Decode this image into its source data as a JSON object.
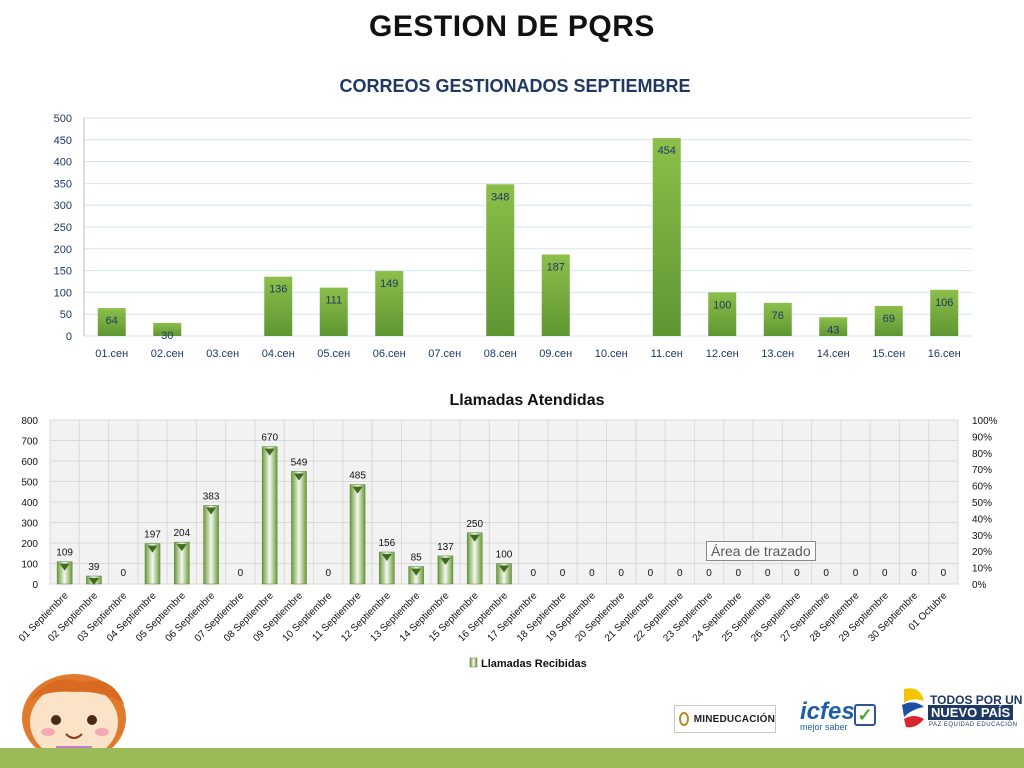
{
  "page": {
    "title": "GESTION DE PQRS"
  },
  "chart_data": [
    {
      "type": "bar",
      "title": "CORREOS GESTIONADOS SEPTIEMBRE",
      "categories": [
        "01.сен",
        "02.сен",
        "03.сен",
        "04.сен",
        "05.сен",
        "06.сен",
        "07.сен",
        "08.сен",
        "09.сен",
        "10.сен",
        "11.сен",
        "12.сен",
        "13.сен",
        "14.сен",
        "15.сен",
        "16.сен"
      ],
      "values": [
        64,
        30,
        null,
        136,
        111,
        149,
        null,
        348,
        187,
        null,
        454,
        100,
        76,
        43,
        69,
        106
      ],
      "ylim": [
        0,
        500
      ],
      "yticks": [
        0,
        50,
        100,
        150,
        200,
        250,
        300,
        350,
        400,
        450,
        500
      ],
      "grid": true,
      "colors": {
        "bar": "#8cbf4a",
        "bar_dark": "#5e9632",
        "label": "#1f3864",
        "grid": "#d6e3f0",
        "axis_text": "#1f3864"
      }
    },
    {
      "type": "bar",
      "title": "Llamadas Atendidas",
      "categories": [
        "01 Septiembre",
        "02 Septiembre",
        "03 Septiembre",
        "04 Septiembre",
        "05 Septiembre",
        "06 Septiembre",
        "07 Septiembre",
        "08 Septiembre",
        "09 Septiembre",
        "10 Septiembre",
        "11 Septiembre",
        "12 Septiembre",
        "13 Septiembre",
        "14 Septiembre",
        "15 Septiembre",
        "16 Septiembre",
        "17 Septiembre",
        "18 Septiembre",
        "19 Septiembre",
        "20 Septiembre",
        "21 Septiembre",
        "22 Septiembre",
        "23 Septiembre",
        "24 Septiembre",
        "25 Septiembre",
        "26 Septiembre",
        "27 Septiembre",
        "28 Septiembre",
        "29 Septiembre",
        "30 Septiembre",
        "01 Octubre"
      ],
      "series": [
        {
          "name": "Llamadas Recibidas",
          "values": [
            109,
            39,
            0,
            197,
            204,
            383,
            0,
            670,
            549,
            0,
            485,
            156,
            85,
            137,
            250,
            100,
            0,
            0,
            0,
            0,
            0,
            0,
            0,
            0,
            0,
            0,
            0,
            0,
            0,
            0,
            0
          ]
        }
      ],
      "ylim": [
        0,
        800
      ],
      "yticks": [
        0,
        100,
        200,
        300,
        400,
        500,
        600,
        700,
        800
      ],
      "y2lim": [
        0,
        100
      ],
      "y2ticks": [
        "0%",
        "10%",
        "20%",
        "30%",
        "40%",
        "50%",
        "60%",
        "70%",
        "80%",
        "90%",
        "100%"
      ],
      "legend": "bottom",
      "grid": true,
      "tooltip": "Área de trazado",
      "colors": {
        "bar": "#6a9a3a",
        "bar_light": "#f4f8ee",
        "grid": "#d9d9d9",
        "plot_bg": "#f2f2f2",
        "text": "#111111"
      }
    }
  ],
  "logos": {
    "mineducacion": "MINEDUCACIÓN",
    "icfes_word": "icfes",
    "icfes_tagline": "mejor saber",
    "todos_por_un": "TODOS POR UN",
    "nuevo_pais": "NUEVO PAÍS",
    "nuevo_pais_tagline": "PAZ EQUIDAD EDUCACIÓN"
  }
}
